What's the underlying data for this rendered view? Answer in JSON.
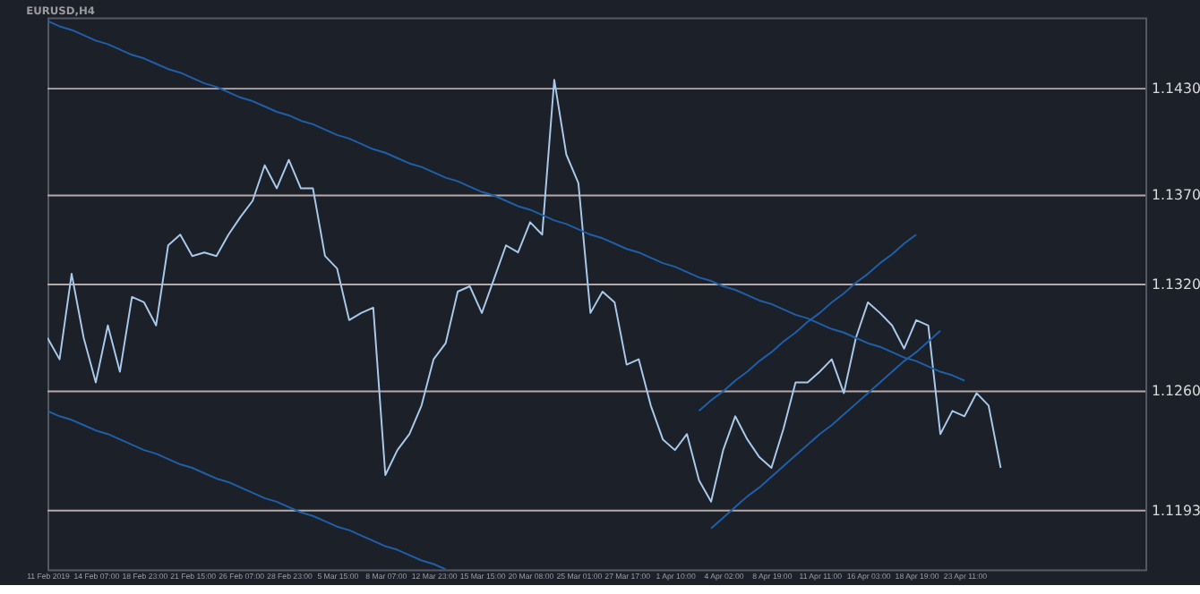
{
  "chart_data": {
    "type": "line",
    "title": "EURUSD,H4",
    "ylim": [
      1.116,
      1.147
    ],
    "categories": [
      "11 Feb 2019",
      null,
      null,
      null,
      "14 Feb 07:00",
      null,
      null,
      null,
      "18 Feb 23:00",
      null,
      null,
      null,
      "21 Feb 15:00",
      null,
      null,
      null,
      "26 Feb 07:00",
      null,
      null,
      null,
      "28 Feb 23:00",
      null,
      null,
      null,
      "5 Mar 15:00",
      null,
      null,
      null,
      "8 Mar 07:00",
      null,
      null,
      null,
      "12 Mar 23:00",
      null,
      null,
      null,
      "15 Mar 15:00",
      null,
      null,
      null,
      "20 Mar 08:00",
      null,
      null,
      null,
      "25 Mar 01:00",
      null,
      null,
      null,
      "27 Mar 17:00",
      null,
      null,
      null,
      "1 Apr 10:00",
      null,
      null,
      null,
      "4 Apr 02:00",
      null,
      null,
      null,
      "8 Apr 19:00",
      null,
      null,
      null,
      "11 Apr 11:00",
      null,
      null,
      null,
      "16 Apr 03:00",
      null,
      null,
      null,
      "18 Apr 19:00",
      null,
      null,
      null,
      "23 Apr 11:00",
      null,
      null,
      null,
      null,
      null,
      null,
      null,
      null,
      null,
      null,
      null,
      null,
      null,
      null,
      null
    ],
    "yticks": [
      {
        "value": 1.1193,
        "label": "1.1193"
      },
      {
        "value": 1.126,
        "label": "1.1260"
      },
      {
        "value": 1.132,
        "label": "1.1320"
      },
      {
        "value": 1.137,
        "label": "1.1370"
      },
      {
        "value": 1.143,
        "label": "1.1430"
      }
    ],
    "ref_lines": [
      {
        "axis": "y",
        "value": 1.143,
        "color": "#b5a9a9"
      },
      {
        "axis": "y",
        "value": 1.137,
        "color": "#b5a9a9"
      },
      {
        "axis": "y",
        "value": 1.132,
        "color": "#b5a9a9"
      },
      {
        "axis": "y",
        "value": 1.126,
        "color": "#b5a9a9"
      },
      {
        "axis": "y",
        "value": 1.1193,
        "color": "#b5a9a9"
      }
    ],
    "grid": false,
    "marker": "none",
    "line_style": "solid",
    "series": [
      {
        "color": "#a9c9ea",
        "values": [
          1.129,
          1.1278,
          1.1326,
          1.129,
          1.1265,
          1.1297,
          1.1271,
          1.1313,
          1.131,
          1.1297,
          1.1342,
          1.1348,
          1.1336,
          1.1338,
          1.1336,
          1.1348,
          1.1358,
          1.1367,
          1.1387,
          1.1374,
          1.139,
          1.1374,
          1.1374,
          1.1336,
          1.1329,
          1.13,
          1.1304,
          1.1307,
          1.1213,
          1.1227,
          1.1236,
          1.1252,
          1.1278,
          1.1287,
          1.1316,
          1.1319,
          1.1304,
          1.1323,
          1.1342,
          1.1338,
          1.1355,
          1.1348,
          1.1435,
          1.1393,
          1.1377,
          1.1304,
          1.1316,
          1.131,
          1.1275,
          1.1278,
          1.1252,
          1.1233,
          1.1227,
          1.1236,
          1.121,
          1.1198,
          1.1227,
          1.1246,
          1.1233,
          1.1223,
          1.1217,
          1.1239,
          1.1265,
          1.1265,
          1.1271,
          1.1278,
          1.1259,
          1.129,
          1.131,
          1.1304,
          1.1297,
          1.1284,
          1.13,
          1.1297,
          1.1236,
          1.1249,
          1.1246,
          1.1259,
          1.1252,
          1.1217,
          null,
          null,
          null,
          null,
          null,
          null,
          null,
          null,
          null,
          null,
          null,
          null
        ]
      },
      {
        "type": "line",
        "color": "#1f5fa8",
        "values": [
          1.1468,
          1.1465,
          1.1463,
          1.146,
          1.1457,
          1.1455,
          1.1452,
          1.1449,
          1.1447,
          1.1444,
          1.1441,
          1.1439,
          1.1436,
          1.1433,
          1.1431,
          1.1428,
          1.1425,
          1.1423,
          1.142,
          1.1417,
          1.1415,
          1.1412,
          1.141,
          1.1407,
          1.1404,
          1.1402,
          1.1399,
          1.1396,
          1.1394,
          1.1391,
          1.1388,
          1.1386,
          1.1383,
          1.138,
          1.1378,
          1.1375,
          1.1372,
          1.137,
          1.1367,
          1.1364,
          1.1362,
          1.1359,
          1.1356,
          1.1354,
          1.1351,
          1.1348,
          1.1346,
          1.1343,
          1.134,
          1.1338,
          1.1335,
          1.1332,
          1.133,
          1.1327,
          1.1324,
          1.1322,
          1.1319,
          1.1317,
          1.1314,
          1.1311,
          1.1309,
          1.1306,
          1.1303,
          1.1301,
          1.1298,
          1.1295,
          1.1293,
          1.129,
          1.1287,
          1.1285,
          1.1282,
          1.1279,
          1.1277,
          1.1274,
          1.1271,
          1.1269,
          1.1266,
          null,
          null,
          null,
          null,
          null,
          null,
          null,
          null,
          null,
          null,
          null,
          null,
          null,
          null,
          null
        ]
      },
      {
        "type": "line",
        "color": "#1f5fa8",
        "values": [
          1.1249,
          1.1246,
          1.1244,
          1.1241,
          1.1238,
          1.1236,
          1.1233,
          1.123,
          1.1227,
          1.1225,
          1.1222,
          1.1219,
          1.1217,
          1.1214,
          1.1211,
          1.1209,
          1.1206,
          1.1203,
          1.12,
          1.1198,
          1.1195,
          1.1192,
          1.119,
          1.1187,
          1.1184,
          1.1182,
          1.1179,
          1.1176,
          1.1173,
          1.1171,
          1.1168,
          1.1165,
          1.1163,
          1.116,
          null,
          null,
          null,
          null,
          null,
          null,
          null,
          null,
          null,
          null,
          null,
          null,
          null,
          null,
          null,
          null,
          null,
          null,
          null,
          null,
          null,
          null,
          null,
          null,
          null,
          null,
          null,
          null,
          null,
          null,
          null,
          null,
          null,
          null,
          null,
          null,
          null,
          null,
          null,
          null,
          null,
          null,
          null,
          null,
          null,
          null,
          null,
          null,
          null,
          null,
          null,
          null,
          null,
          null,
          null,
          null,
          null,
          null
        ]
      },
      {
        "type": "line",
        "color": "#1f5fa8",
        "values": [
          null,
          null,
          null,
          null,
          null,
          null,
          null,
          null,
          null,
          null,
          null,
          null,
          null,
          null,
          null,
          null,
          null,
          null,
          null,
          null,
          null,
          null,
          null,
          null,
          null,
          null,
          null,
          null,
          null,
          null,
          null,
          null,
          null,
          null,
          null,
          null,
          null,
          null,
          null,
          null,
          null,
          null,
          null,
          null,
          null,
          null,
          null,
          null,
          null,
          null,
          null,
          null,
          null,
          null,
          1.1249,
          1.1255,
          1.126,
          1.1266,
          1.1271,
          1.1277,
          1.1282,
          1.1288,
          1.1293,
          1.1299,
          1.1304,
          1.131,
          1.1315,
          1.1321,
          1.1326,
          1.1332,
          1.1337,
          1.1343,
          1.1348,
          null,
          null,
          null,
          null,
          null,
          null,
          null,
          null,
          null,
          null,
          null,
          null,
          null,
          null,
          null,
          null,
          null,
          null,
          null
        ]
      },
      {
        "type": "line",
        "color": "#1f5fa8",
        "values": [
          null,
          null,
          null,
          null,
          null,
          null,
          null,
          null,
          null,
          null,
          null,
          null,
          null,
          null,
          null,
          null,
          null,
          null,
          null,
          null,
          null,
          null,
          null,
          null,
          null,
          null,
          null,
          null,
          null,
          null,
          null,
          null,
          null,
          null,
          null,
          null,
          null,
          null,
          null,
          null,
          null,
          null,
          null,
          null,
          null,
          null,
          null,
          null,
          null,
          null,
          null,
          null,
          null,
          null,
          null,
          1.1183,
          1.1189,
          1.1195,
          1.1201,
          1.1206,
          1.1212,
          1.1218,
          1.1224,
          1.123,
          1.1236,
          1.1241,
          1.1247,
          1.1253,
          1.1259,
          1.1265,
          1.1271,
          1.1277,
          1.1282,
          1.1288,
          1.1294,
          null,
          null,
          null,
          null,
          null,
          null,
          null,
          null,
          null,
          null,
          null,
          null,
          null,
          null,
          null,
          null,
          null
        ]
      }
    ]
  }
}
